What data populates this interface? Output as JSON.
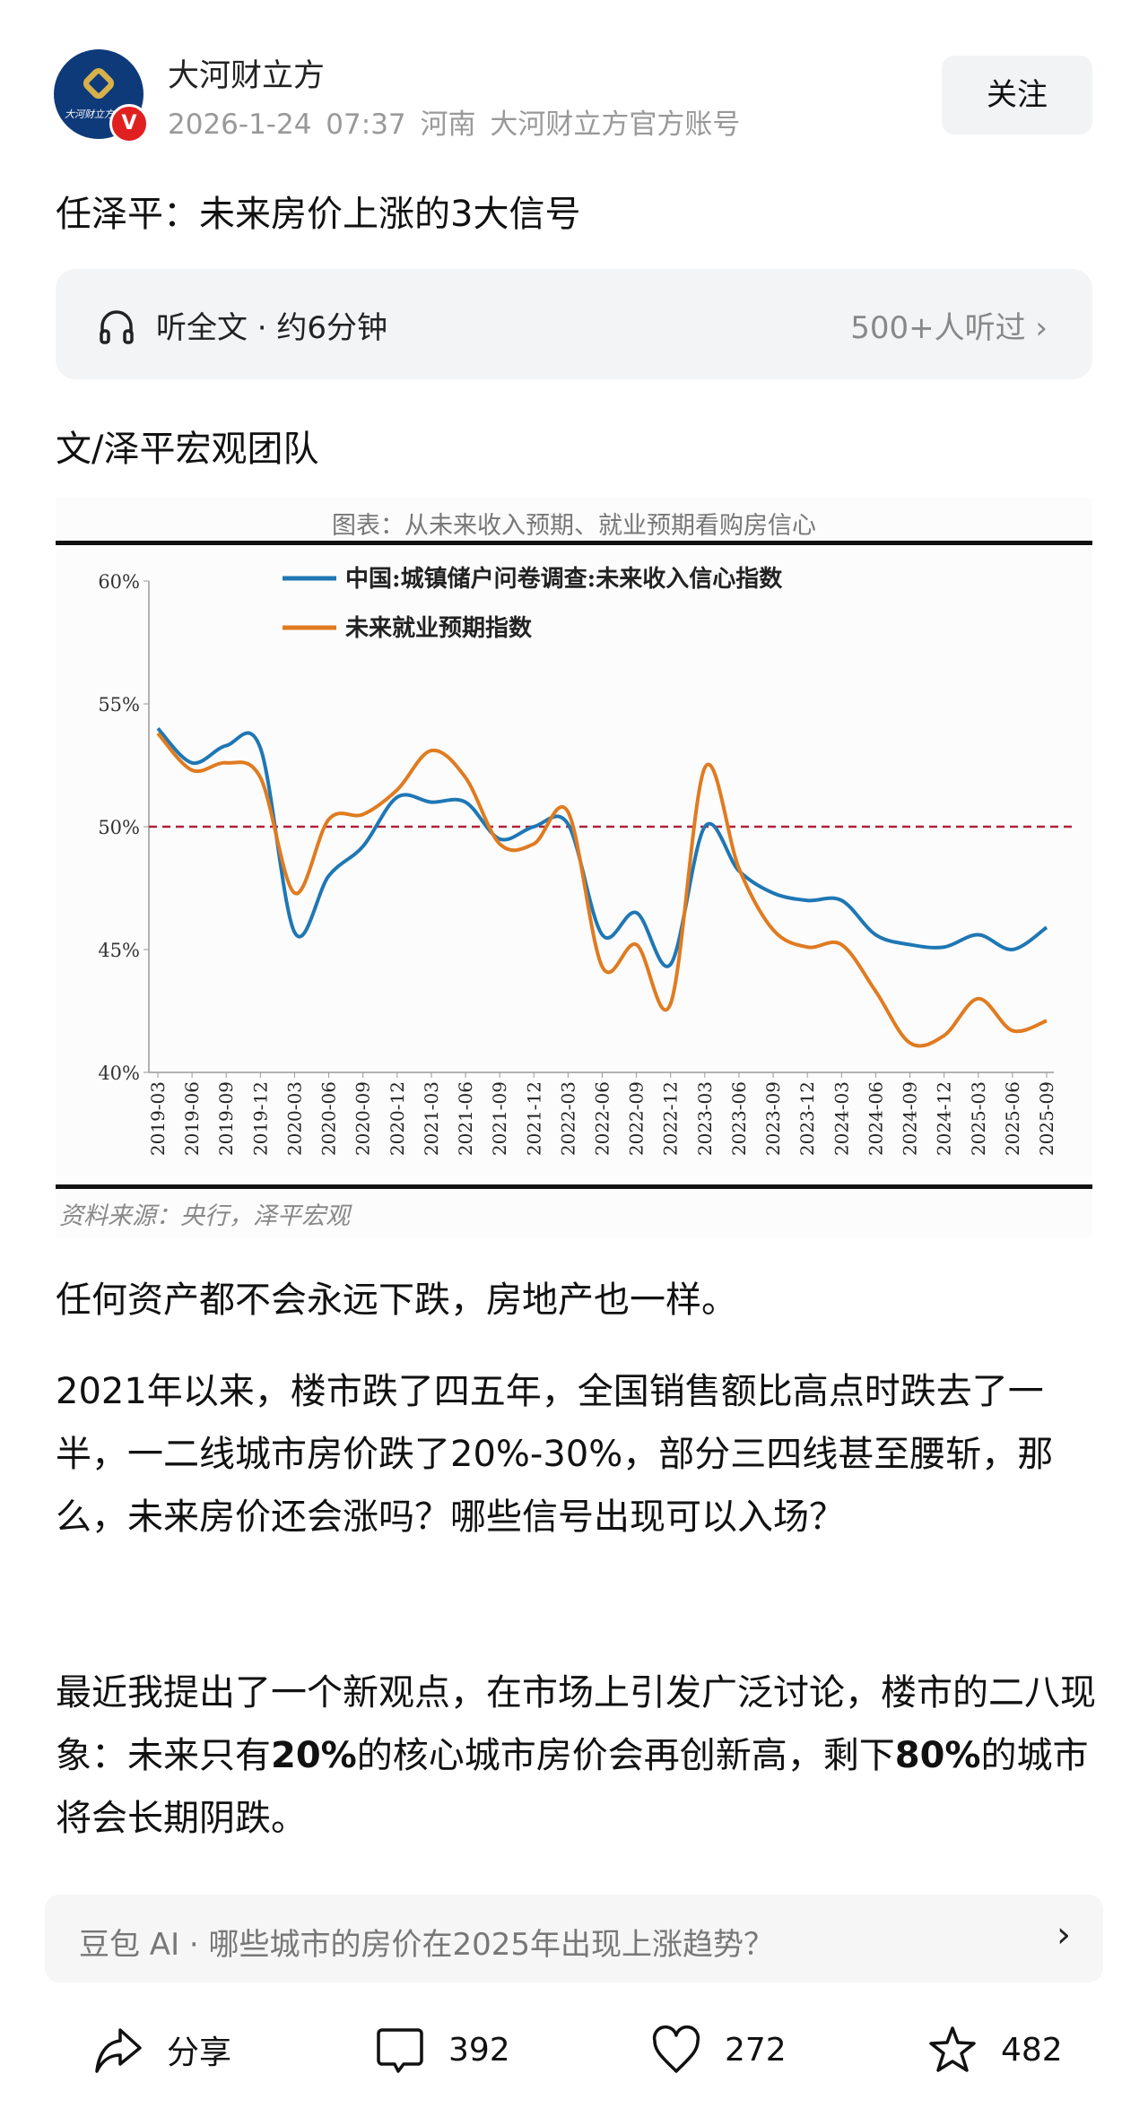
{
  "header": {
    "author": "大河财立方",
    "date": "2026-1-24",
    "time": "07:37",
    "location": "河南",
    "account_desc": "大河财立方官方账号",
    "follow_label": "关注",
    "verified_badge": "V",
    "avatar_logo_text": "大河财立方"
  },
  "article": {
    "title": "任泽平：未来房价上涨的3大信号",
    "listen_label": "听全文 · 约6分钟",
    "listen_count": "500+人听过",
    "byline": "文/泽平宏观团队",
    "paragraphs": [
      "任何资产都不会永远下跌，房地产也一样。",
      "2021年以来，楼市跌了四五年，全国销售额比高点时跌去了一半，一二线城市房价跌了20%-30%，部分三四线甚至腰斩，那么，未来房价还会涨吗？哪些信号出现可以入场？"
    ],
    "para3": {
      "a": "最近我提出了一个新观点，在市场上引发广泛讨论，楼市的二八现象：未来只有",
      "b": "20%",
      "c": "的核心城市房价会再创新高，剩下",
      "d": "80%",
      "e": "的城市将会长期阴跌。"
    }
  },
  "doubao": {
    "question": "豆包 AI · 哪些城市的房价在2025年出现上涨趋势？",
    "chevron": "›"
  },
  "actions": {
    "share": "分享",
    "comments": "392",
    "likes": "272",
    "favorites": "482"
  },
  "chart_data": {
    "type": "line",
    "title": "图表：从未来收入预期、就业预期看购房信心",
    "source": "资料来源：央行，泽平宏观",
    "categories": [
      "2019-03",
      "2019-06",
      "2019-09",
      "2019-12",
      "2020-03",
      "2020-06",
      "2020-09",
      "2020-12",
      "2021-03",
      "2021-06",
      "2021-09",
      "2021-12",
      "2022-03",
      "2022-06",
      "2022-09",
      "2022-12",
      "2023-03",
      "2023-06",
      "2023-09",
      "2023-12",
      "2024-03",
      "2024-06",
      "2024-09",
      "2024-12",
      "2025-03",
      "2025-06",
      "2025-09"
    ],
    "ylim": [
      40,
      60
    ],
    "yticks": [
      "40%",
      "45%",
      "50%",
      "55%",
      "60%"
    ],
    "ytick_values": [
      40,
      45,
      50,
      55,
      60
    ],
    "reference_line": 50,
    "legend_position": "top-left",
    "series": [
      {
        "name": "中国:城镇储户问卷调查:未来收入信心指数",
        "color": "#1f77b4",
        "values": [
          54.0,
          52.6,
          53.3,
          53.2,
          45.7,
          48.0,
          49.2,
          51.2,
          51.0,
          51.0,
          49.5,
          50.0,
          50.1,
          45.6,
          46.5,
          44.4,
          50.0,
          48.2,
          47.3,
          47.0,
          47.0,
          45.6,
          45.2,
          45.1,
          45.6,
          45.0,
          45.9
        ]
      },
      {
        "name": "未来就业预期指数",
        "color": "#e07b20",
        "values": [
          53.8,
          52.3,
          52.6,
          52.0,
          47.3,
          50.3,
          50.5,
          51.5,
          53.1,
          52.0,
          49.3,
          49.3,
          50.6,
          44.3,
          45.2,
          42.8,
          52.4,
          48.3,
          45.8,
          45.1,
          45.2,
          43.3,
          41.2,
          41.5,
          43.0,
          41.7,
          42.1
        ]
      }
    ],
    "reference_color": "#b0203a"
  }
}
